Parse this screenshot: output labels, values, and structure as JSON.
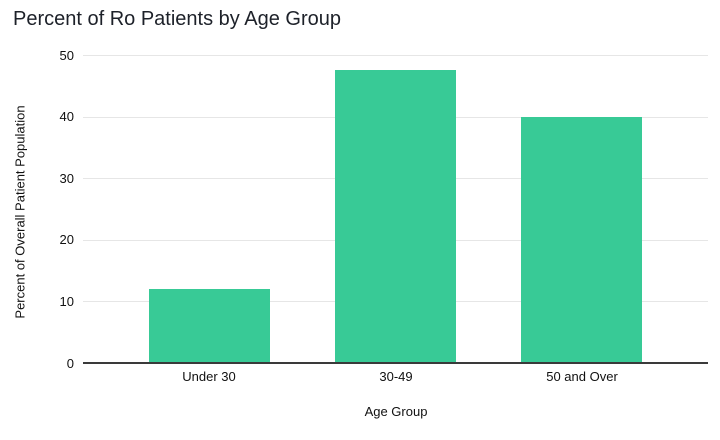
{
  "chart_data": {
    "type": "bar",
    "title": "Percent of Ro Patients by Age Group",
    "categories": [
      "Under 30",
      "30-49",
      "50 and Over"
    ],
    "values": [
      12,
      47.5,
      40
    ],
    "xlabel": "Age Group",
    "ylabel": "Percent of Overall Patient Population",
    "ylim": [
      0,
      50
    ],
    "yticks": [
      0,
      10,
      20,
      30,
      40,
      50
    ],
    "grid": true,
    "legend": false,
    "bar_color": "#38ca96",
    "gridline_color": "#e6e6e6",
    "axis_line_color": "#3a3a3a",
    "title_color": "#1d2129",
    "tick_label_color": "#111111",
    "background_color": "#ffffff"
  }
}
